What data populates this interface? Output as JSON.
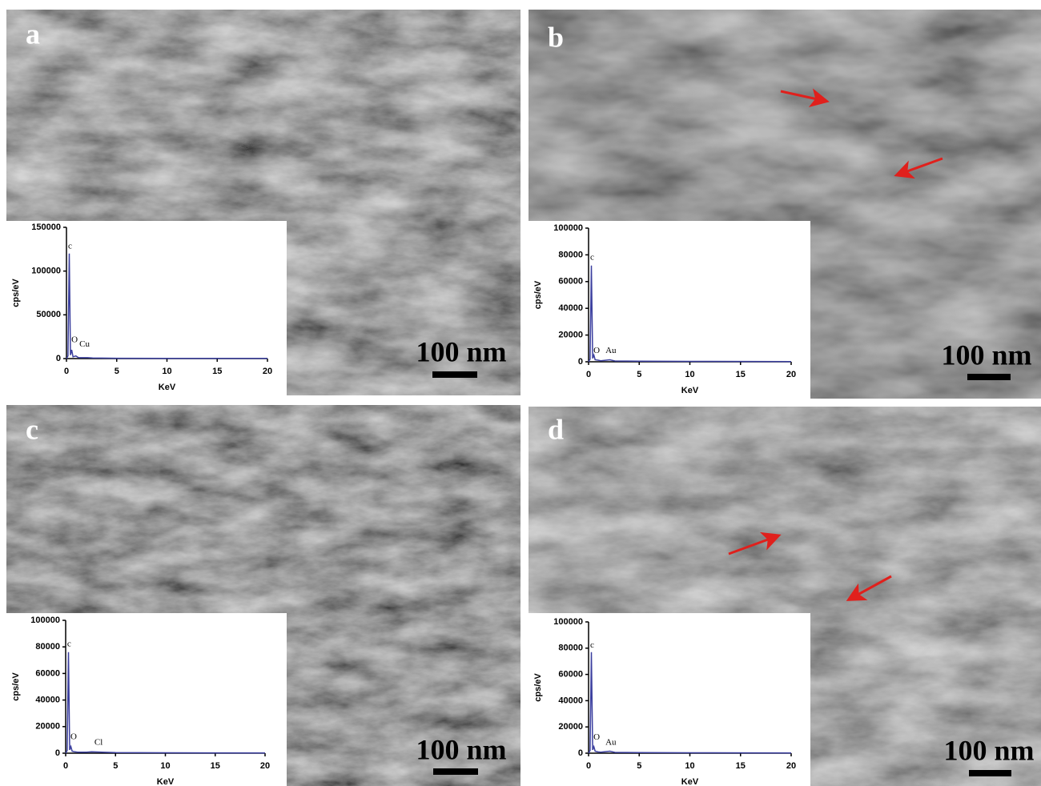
{
  "chart_data": [
    {
      "type": "line",
      "panel_label": "a",
      "scale_bar_label": "100 nm",
      "xlabel": "KeV",
      "ylabel": "cps/eV",
      "color": "#3b3f9e",
      "x": [
        0,
        0.15,
        0.28,
        0.4,
        0.52,
        0.65,
        0.93,
        1.2,
        2.1,
        2.6,
        5,
        10,
        20
      ],
      "values": [
        0,
        3000,
        120000,
        4000,
        10000,
        2000,
        3000,
        1000,
        1000,
        600,
        400,
        300,
        200
      ],
      "xlim": [
        0,
        20
      ],
      "xticks": [
        0,
        5,
        10,
        15,
        20
      ],
      "ylim": [
        0,
        150000
      ],
      "yticks": [
        0,
        50000,
        100000,
        150000
      ],
      "annotations": [
        {
          "text": "c",
          "x": 0.35,
          "y": 128000
        },
        {
          "text": "O",
          "x": 0.8,
          "y": 21000
        },
        {
          "text": "Cu",
          "x": 1.8,
          "y": 16000
        }
      ]
    },
    {
      "type": "line",
      "panel_label": "b",
      "scale_bar_label": "100 nm",
      "xlabel": "KeV",
      "ylabel": "cps/eV",
      "color": "#3b3f9e",
      "x": [
        0,
        0.15,
        0.28,
        0.4,
        0.52,
        0.65,
        0.93,
        1.2,
        2.1,
        2.6,
        5,
        10,
        20
      ],
      "values": [
        0,
        2000,
        72000,
        2500,
        5000,
        1500,
        1200,
        800,
        1500,
        600,
        400,
        300,
        200
      ],
      "xlim": [
        0,
        20
      ],
      "xticks": [
        0,
        5,
        10,
        15,
        20
      ],
      "ylim": [
        0,
        100000
      ],
      "yticks": [
        0,
        20000,
        40000,
        60000,
        80000,
        100000
      ],
      "annotations": [
        {
          "text": "c",
          "x": 0.35,
          "y": 78000
        },
        {
          "text": "O",
          "x": 0.8,
          "y": 8000
        },
        {
          "text": "Au",
          "x": 2.2,
          "y": 8000
        }
      ]
    },
    {
      "type": "line",
      "panel_label": "c",
      "scale_bar_label": "100 nm",
      "xlabel": "KeV",
      "ylabel": "cps/eV",
      "color": "#3b3f9e",
      "x": [
        0,
        0.15,
        0.28,
        0.4,
        0.52,
        0.65,
        0.93,
        1.2,
        2.1,
        2.6,
        5,
        10,
        20
      ],
      "values": [
        0,
        2000,
        76000,
        2500,
        5000,
        1500,
        1000,
        800,
        800,
        1000,
        400,
        300,
        200
      ],
      "xlim": [
        0,
        20
      ],
      "xticks": [
        0,
        5,
        10,
        15,
        20
      ],
      "ylim": [
        0,
        100000
      ],
      "yticks": [
        0,
        20000,
        40000,
        60000,
        80000,
        100000
      ],
      "annotations": [
        {
          "text": "c",
          "x": 0.35,
          "y": 82000
        },
        {
          "text": "O",
          "x": 0.8,
          "y": 12000
        },
        {
          "text": "Cl",
          "x": 3.3,
          "y": 8000
        }
      ]
    },
    {
      "type": "line",
      "panel_label": "d",
      "scale_bar_label": "100 nm",
      "xlabel": "KeV",
      "ylabel": "cps/eV",
      "color": "#3b3f9e",
      "x": [
        0,
        0.15,
        0.28,
        0.4,
        0.52,
        0.65,
        0.93,
        1.2,
        2.1,
        2.6,
        5,
        10,
        20
      ],
      "values": [
        0,
        2000,
        77000,
        2500,
        5000,
        1500,
        1000,
        800,
        1500,
        600,
        400,
        300,
        200
      ],
      "xlim": [
        0,
        20
      ],
      "xticks": [
        0,
        5,
        10,
        15,
        20
      ],
      "ylim": [
        0,
        100000
      ],
      "yticks": [
        0,
        20000,
        40000,
        60000,
        80000,
        100000
      ],
      "annotations": [
        {
          "text": "c",
          "x": 0.35,
          "y": 82000
        },
        {
          "text": "O",
          "x": 0.8,
          "y": 12000
        },
        {
          "text": "Au",
          "x": 2.2,
          "y": 8000
        }
      ]
    }
  ]
}
